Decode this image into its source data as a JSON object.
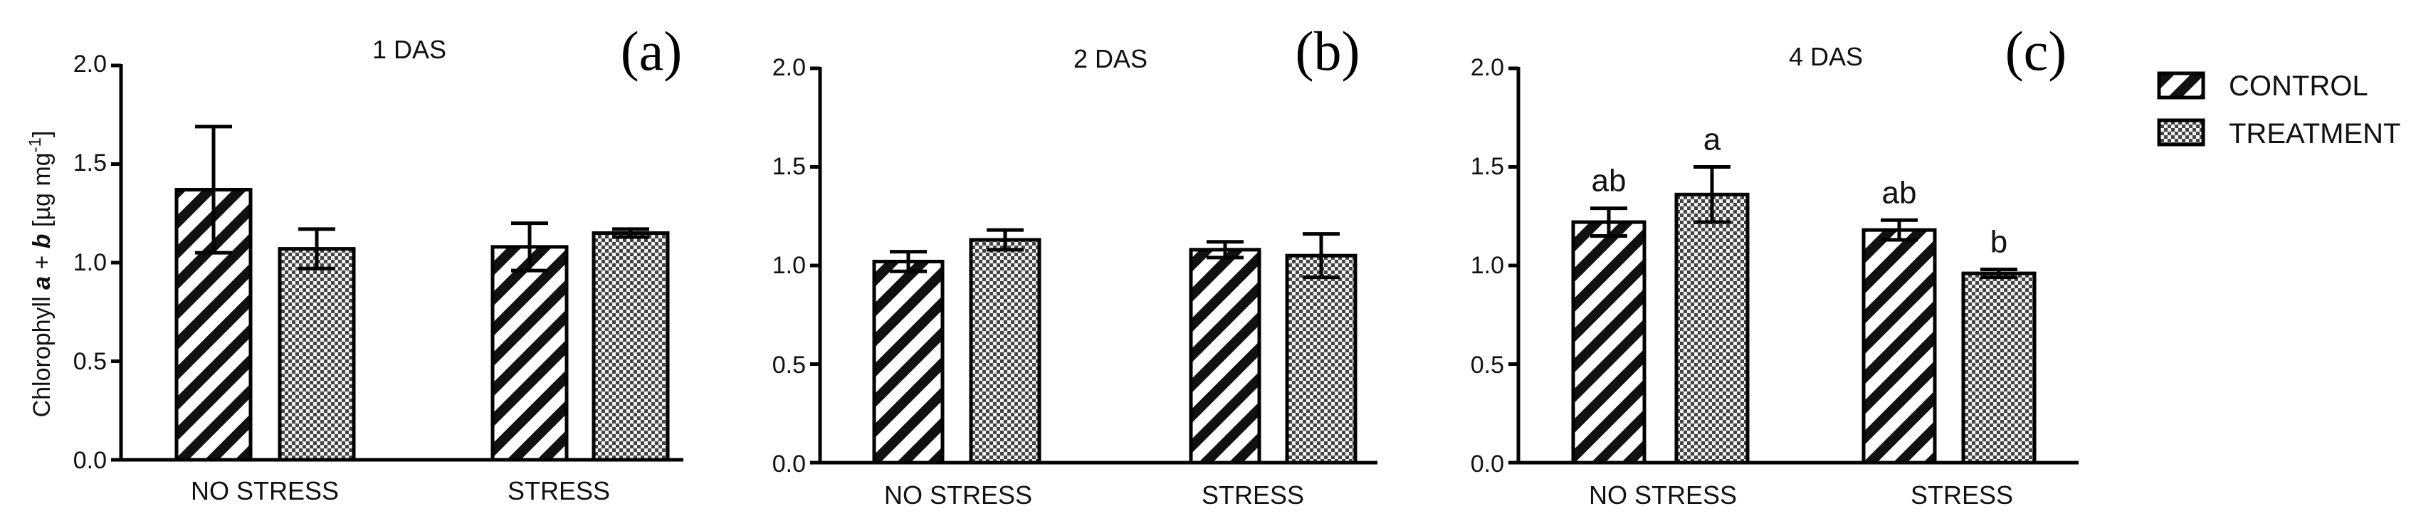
{
  "chart_data": [
    {
      "type": "bar",
      "title": "1 DAS",
      "panel": "(a)",
      "categories": [
        "NO STRESS",
        "STRESS"
      ],
      "ylabel_parts": {
        "prefix": "Chlorophyll ",
        "a": "a",
        "plus": " + ",
        "b": "b",
        "unit": " [µg mg",
        "exp": "-1",
        "close": "]"
      },
      "ylim": [
        0,
        2.0
      ],
      "yticks": [
        "0.0",
        "0.5",
        "1.0",
        "1.5",
        "2.0"
      ],
      "series": [
        {
          "name": "CONTROL",
          "values": [
            1.37,
            1.08
          ],
          "errors": [
            0.32,
            0.12
          ]
        },
        {
          "name": "TREATMENT",
          "values": [
            1.07,
            1.15
          ],
          "errors": [
            0.1,
            0.02
          ]
        }
      ],
      "significance": []
    },
    {
      "type": "bar",
      "title": "2 DAS",
      "panel": "(b)",
      "categories": [
        "NO STRESS",
        "STRESS"
      ],
      "ylim": [
        0,
        2.0
      ],
      "yticks": [
        "0.0",
        "0.5",
        "1.0",
        "1.5",
        "2.0"
      ],
      "series": [
        {
          "name": "CONTROL",
          "values": [
            1.02,
            1.08
          ],
          "errors": [
            0.05,
            0.04
          ]
        },
        {
          "name": "TREATMENT",
          "values": [
            1.13,
            1.05
          ],
          "errors": [
            0.05,
            0.11
          ]
        }
      ],
      "significance": []
    },
    {
      "type": "bar",
      "title": "4 DAS",
      "panel": "(c)",
      "categories": [
        "NO STRESS",
        "STRESS"
      ],
      "ylim": [
        0,
        2.0
      ],
      "yticks": [
        "0.0",
        "0.5",
        "1.0",
        "1.5",
        "2.0"
      ],
      "series": [
        {
          "name": "CONTROL",
          "values": [
            1.22,
            1.18
          ],
          "errors": [
            0.07,
            0.05
          ]
        },
        {
          "name": "TREATMENT",
          "values": [
            1.36,
            0.96
          ],
          "errors": [
            0.14,
            0.02
          ]
        }
      ],
      "significance": [
        [
          "ab",
          "ab"
        ],
        [
          "a",
          "b"
        ]
      ]
    }
  ],
  "legend": {
    "position": "top-right",
    "items": [
      "CONTROL",
      "TREATMENT"
    ]
  }
}
